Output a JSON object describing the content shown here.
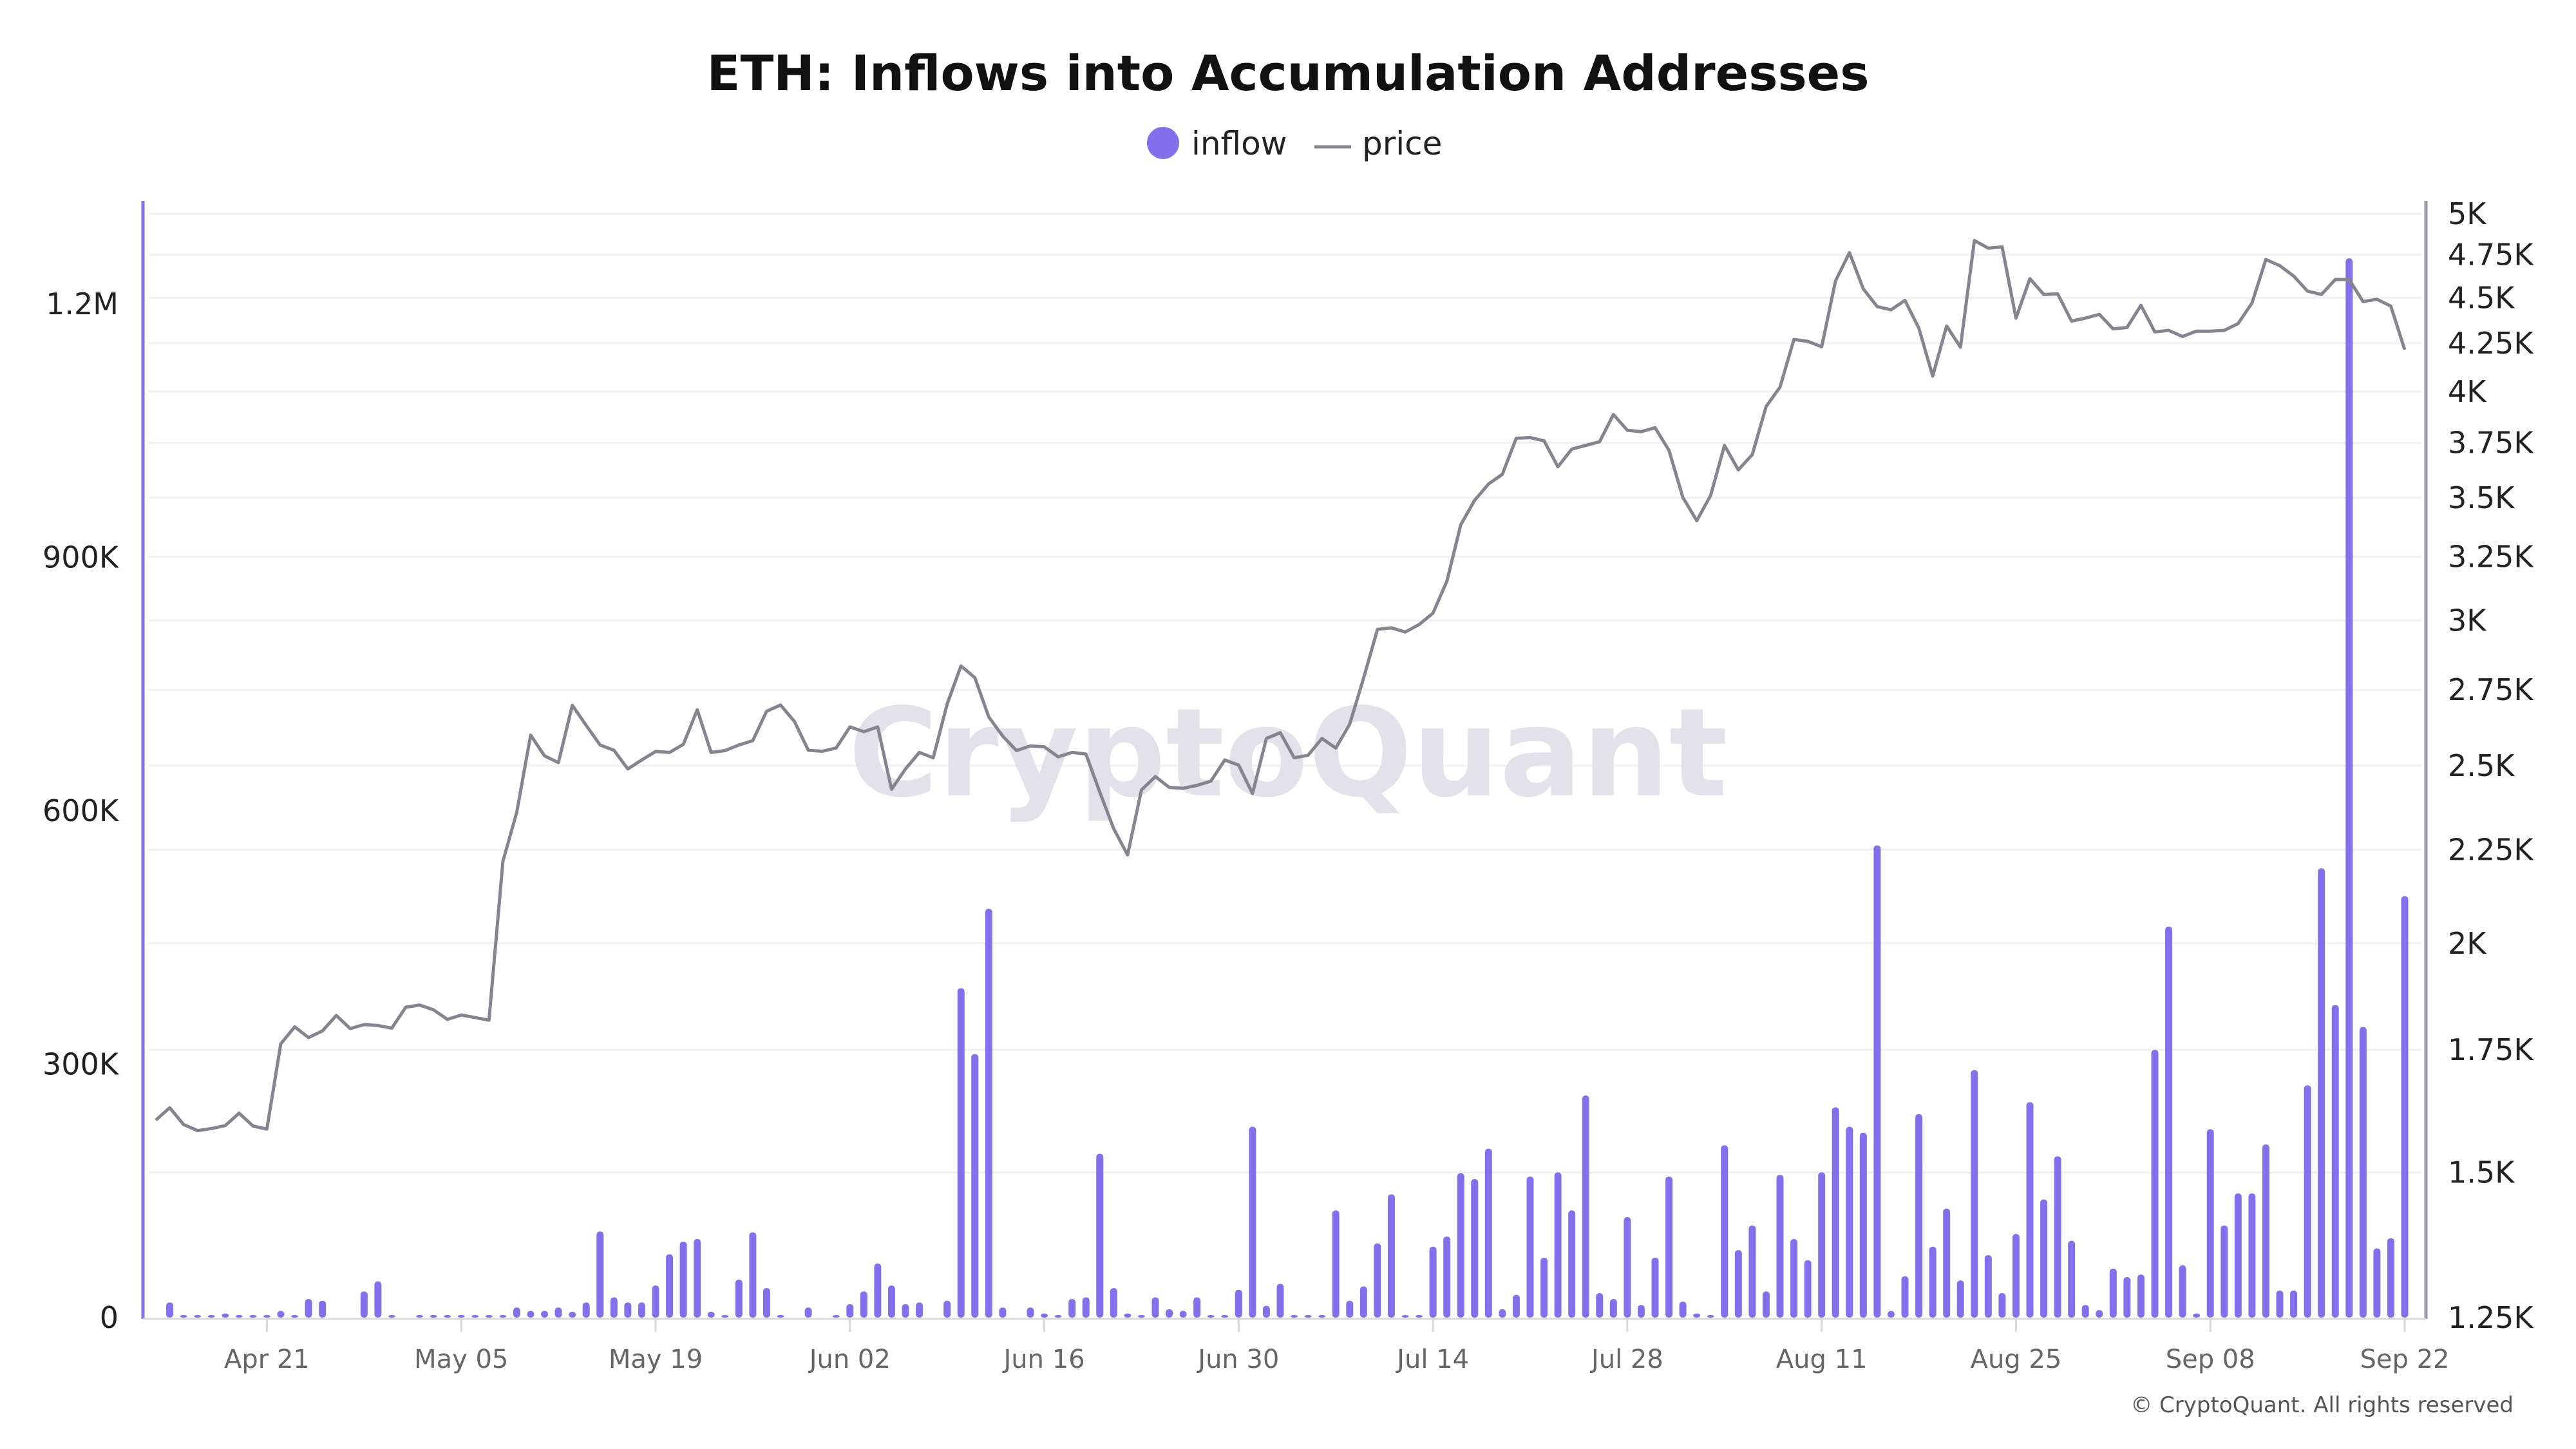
{
  "chart_data": {
    "type": "bar+line",
    "title": "ETH: Inflows into Accumulation Addresses",
    "legend": {
      "position": "top-center",
      "items": [
        {
          "name": "inflow",
          "symbol": "circle"
        },
        {
          "name": "price",
          "symbol": "line"
        }
      ]
    },
    "colors": {
      "inflow": "#8470ec",
      "price": "#86848f",
      "left_axis": "#8470ec",
      "right_axis": "#9a98a2",
      "grid": "#f1f1f4"
    },
    "grid": true,
    "watermark": "CryptoQuant",
    "footer": "© CryptoQuant. All rights reserved",
    "left_axis": {
      "series": "inflow",
      "ylim": [
        0,
        1300000
      ],
      "ticks": [
        0,
        300000,
        600000,
        900000,
        1200000
      ],
      "tick_labels": [
        "0",
        "300K",
        "600K",
        "900K",
        "1.2M"
      ]
    },
    "right_axis": {
      "series": "price",
      "scale": "log",
      "ylim": [
        1250,
        5000
      ],
      "ticks": [
        1250,
        1500,
        1750,
        2000,
        2250,
        2500,
        2750,
        3000,
        3250,
        3500,
        3750,
        4000,
        4250,
        4500,
        4750,
        5000
      ],
      "tick_labels": [
        "1.25K",
        "1.5K",
        "1.75K",
        "2K",
        "2.25K",
        "2.5K",
        "2.75K",
        "3K",
        "3.25K",
        "3.5K",
        "3.75K",
        "4K",
        "4.25K",
        "4.5K",
        "4.75K",
        "5K"
      ]
    },
    "x_tick_labels": [
      "Apr 21",
      "May 05",
      "May 19",
      "Jun 02",
      "Jun 16",
      "Jun 30",
      "Jul 14",
      "Jul 28",
      "Aug 11",
      "Aug 25",
      "Sep 08",
      "Sep 22"
    ],
    "x": [
      "Apr 13",
      "Apr 14",
      "Apr 15",
      "Apr 16",
      "Apr 17",
      "Apr 18",
      "Apr 19",
      "Apr 20",
      "Apr 21",
      "Apr 22",
      "Apr 23",
      "Apr 24",
      "Apr 25",
      "Apr 26",
      "Apr 27",
      "Apr 28",
      "Apr 29",
      "Apr 30",
      "May 01",
      "May 02",
      "May 03",
      "May 04",
      "May 05",
      "May 06",
      "May 07",
      "May 08",
      "May 09",
      "May 10",
      "May 11",
      "May 12",
      "May 13",
      "May 14",
      "May 15",
      "May 16",
      "May 17",
      "May 18",
      "May 19",
      "May 20",
      "May 21",
      "May 22",
      "May 23",
      "May 24",
      "May 25",
      "May 26",
      "May 27",
      "May 28",
      "May 29",
      "May 30",
      "May 31",
      "Jun 01",
      "Jun 02",
      "Jun 03",
      "Jun 04",
      "Jun 05",
      "Jun 06",
      "Jun 07",
      "Jun 08",
      "Jun 09",
      "Jun 10",
      "Jun 11",
      "Jun 12",
      "Jun 13",
      "Jun 14",
      "Jun 15",
      "Jun 16",
      "Jun 17",
      "Jun 18",
      "Jun 19",
      "Jun 20",
      "Jun 21",
      "Jun 22",
      "Jun 23",
      "Jun 24",
      "Jun 25",
      "Jun 26",
      "Jun 27",
      "Jun 28",
      "Jun 29",
      "Jun 30",
      "Jul 01",
      "Jul 02",
      "Jul 03",
      "Jul 04",
      "Jul 05",
      "Jul 06",
      "Jul 07",
      "Jul 08",
      "Jul 09",
      "Jul 10",
      "Jul 11",
      "Jul 12",
      "Jul 13",
      "Jul 14",
      "Jul 15",
      "Jul 16",
      "Jul 17",
      "Jul 18",
      "Jul 19",
      "Jul 20",
      "Jul 21",
      "Jul 22",
      "Jul 23",
      "Jul 24",
      "Jul 25",
      "Jul 26",
      "Jul 27",
      "Jul 28",
      "Jul 29",
      "Jul 30",
      "Jul 31",
      "Aug 01",
      "Aug 02",
      "Aug 03",
      "Aug 04",
      "Aug 05",
      "Aug 06",
      "Aug 07",
      "Aug 08",
      "Aug 09",
      "Aug 10",
      "Aug 11",
      "Aug 12",
      "Aug 13",
      "Aug 14",
      "Aug 15",
      "Aug 16",
      "Aug 17",
      "Aug 18",
      "Aug 19",
      "Aug 20",
      "Aug 21",
      "Aug 22",
      "Aug 23",
      "Aug 24",
      "Aug 25",
      "Aug 26",
      "Aug 27",
      "Aug 28",
      "Aug 29",
      "Aug 30",
      "Aug 31",
      "Sep 01",
      "Sep 02",
      "Sep 03",
      "Sep 04",
      "Sep 05",
      "Sep 06",
      "Sep 07",
      "Sep 08",
      "Sep 09",
      "Sep 10",
      "Sep 11",
      "Sep 12",
      "Sep 13",
      "Sep 14",
      "Sep 15",
      "Sep 16",
      "Sep 17",
      "Sep 18",
      "Sep 19",
      "Sep 20",
      "Sep 21",
      "Sep 22"
    ],
    "series": [
      {
        "name": "inflow",
        "type": "bar",
        "axis": "left",
        "values": [
          0,
          18000,
          3000,
          1000,
          3000,
          5000,
          1000,
          1000,
          3000,
          8000,
          3000,
          22000,
          20000,
          0,
          0,
          31000,
          43000,
          1000,
          0,
          2000,
          1000,
          1000,
          3000,
          1000,
          1000,
          3000,
          12000,
          8000,
          8000,
          12000,
          7000,
          18000,
          102000,
          24000,
          18000,
          18000,
          38000,
          75000,
          90000,
          93000,
          7000,
          1000,
          45000,
          101000,
          35000,
          3000,
          0,
          12000,
          0,
          1000,
          16000,
          31000,
          64000,
          38000,
          16000,
          18000,
          0,
          20000,
          390000,
          312000,
          484000,
          12000,
          0,
          12000,
          5000,
          2000,
          22000,
          24000,
          194000,
          35000,
          5000,
          2000,
          24000,
          10000,
          8000,
          24000,
          1000,
          2000,
          33000,
          226000,
          14000,
          40000,
          2000,
          1000,
          2000,
          127000,
          20000,
          37000,
          88000,
          146000,
          1000,
          1000,
          84000,
          96000,
          171000,
          164000,
          200000,
          10000,
          27000,
          167000,
          71000,
          172000,
          127000,
          263000,
          29000,
          22000,
          119000,
          15000,
          71000,
          167000,
          19000,
          5000,
          1000,
          204000,
          80000,
          109000,
          31000,
          169000,
          93000,
          68000,
          172000,
          249000,
          226000,
          219000,
          559000,
          8000,
          49000,
          241000,
          84000,
          129000,
          44000,
          293000,
          74000,
          29000,
          99000,
          255000,
          140000,
          191000,
          91000,
          15000,
          9000,
          58000,
          48000,
          51000,
          317000,
          463000,
          62000,
          5000,
          223000,
          109000,
          147000,
          147000,
          205000,
          32000,
          32000,
          275000,
          532000,
          370000,
          1254000,
          344000,
          82000,
          94000,
          499000
        ]
      },
      {
        "name": "price",
        "type": "line",
        "axis": "right",
        "values": [
          1602,
          1627,
          1593,
          1581,
          1585,
          1591,
          1616,
          1590,
          1584,
          1763,
          1801,
          1777,
          1792,
          1827,
          1797,
          1806,
          1804,
          1798,
          1846,
          1851,
          1840,
          1818,
          1828,
          1822,
          1816,
          2217,
          2358,
          2598,
          2531,
          2510,
          2697,
          2630,
          2566,
          2549,
          2490,
          2518,
          2545,
          2542,
          2568,
          2682,
          2542,
          2548,
          2566,
          2580,
          2677,
          2698,
          2643,
          2549,
          2546,
          2556,
          2625,
          2609,
          2625,
          2427,
          2490,
          2542,
          2525,
          2701,
          2834,
          2792,
          2658,
          2595,
          2548,
          2563,
          2560,
          2528,
          2542,
          2537,
          2418,
          2310,
          2235,
          2425,
          2466,
          2433,
          2430,
          2439,
          2452,
          2518,
          2502,
          2414,
          2587,
          2606,
          2525,
          2533,
          2587,
          2556,
          2634,
          2790,
          2967,
          2973,
          2957,
          2985,
          3028,
          3152,
          3383,
          3489,
          3561,
          3605,
          3772,
          3775,
          3760,
          3639,
          3721,
          3738,
          3755,
          3886,
          3810,
          3803,
          3822,
          3715,
          3502,
          3401,
          3510,
          3738,
          3625,
          3695,
          3925,
          4022,
          4270,
          4260,
          4231,
          4596,
          4762,
          4550,
          4450,
          4432,
          4485,
          4331,
          4078,
          4343,
          4229,
          4835,
          4789,
          4796,
          4386,
          4609,
          4518,
          4522,
          4370,
          4386,
          4407,
          4327,
          4335,
          4457,
          4311,
          4319,
          4286,
          4315,
          4315,
          4319,
          4356,
          4470,
          4721,
          4685,
          4624,
          4537,
          4518,
          4604,
          4604,
          4478,
          4491,
          4453,
          4216
        ]
      }
    ]
  }
}
